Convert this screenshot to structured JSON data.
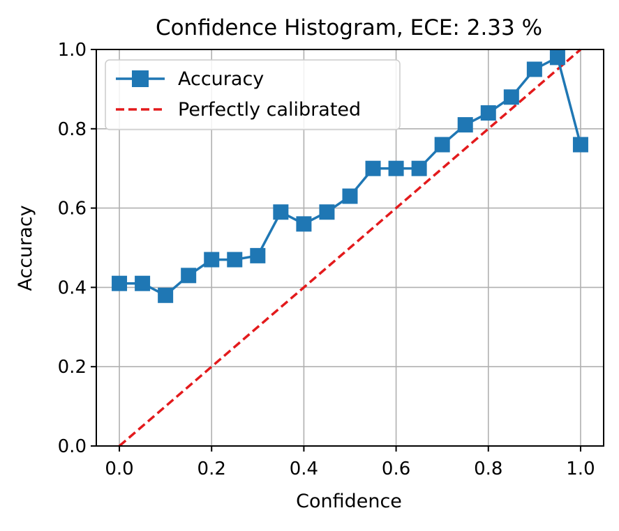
{
  "chart_data": {
    "type": "line",
    "title": "Confidence Histogram, ECE: 2.33 %",
    "xlabel": "Confidence",
    "ylabel": "Accuracy",
    "xlim": [
      -0.05,
      1.05
    ],
    "ylim": [
      0,
      1
    ],
    "grid": true,
    "legend_position": "top-left",
    "x_ticks": [
      0.0,
      0.2,
      0.4,
      0.6,
      0.8,
      1.0
    ],
    "x_tick_labels": [
      "0.0",
      "0.2",
      "0.4",
      "0.6",
      "0.8",
      "1.0"
    ],
    "y_ticks": [
      0.0,
      0.2,
      0.4,
      0.6,
      0.8,
      1.0
    ],
    "y_tick_labels": [
      "0.0",
      "0.2",
      "0.4",
      "0.6",
      "0.8",
      "1.0"
    ],
    "series": [
      {
        "name": "Accuracy",
        "color": "#1f77b4",
        "line_style": "solid",
        "marker": "square",
        "x": [
          0.0,
          0.05,
          0.1,
          0.15,
          0.2,
          0.25,
          0.3,
          0.35,
          0.4,
          0.45,
          0.5,
          0.55,
          0.6,
          0.65,
          0.7,
          0.75,
          0.8,
          0.85,
          0.9,
          0.95,
          1.0
        ],
        "y": [
          0.41,
          0.41,
          0.38,
          0.43,
          0.47,
          0.47,
          0.48,
          0.59,
          0.56,
          0.59,
          0.63,
          0.7,
          0.7,
          0.7,
          0.76,
          0.81,
          0.84,
          0.88,
          0.95,
          0.98,
          0.76
        ]
      },
      {
        "name": "Perfectly calibrated",
        "color": "#e31a1c",
        "line_style": "dashed",
        "marker": "none",
        "x": [
          0.0,
          1.0
        ],
        "y": [
          0.0,
          1.0
        ]
      }
    ]
  }
}
